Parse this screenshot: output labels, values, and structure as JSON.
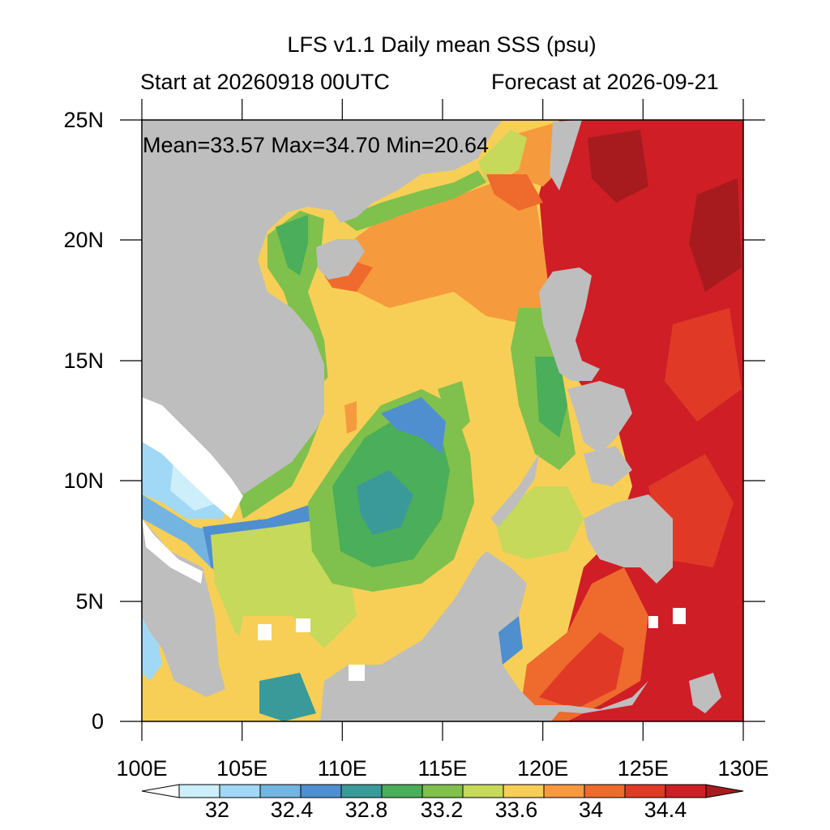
{
  "title": "LFS v1.1 Daily mean SSS (psu)",
  "start_label": "Start at 20260918 00UTC",
  "forecast_label": "Forecast at 2026-09-21",
  "stats": "Mean=33.57  Max=34.70  Min=20.64",
  "y_ticks": [
    "25N",
    "20N",
    "15N",
    "10N",
    "5N",
    "0"
  ],
  "x_ticks": [
    "100E",
    "105E",
    "110E",
    "115E",
    "120E",
    "125E",
    "130E"
  ],
  "colorbar": {
    "labels": [
      "32",
      "32.4",
      "32.8",
      "33.2",
      "33.6",
      "34",
      "34.4"
    ],
    "colors": [
      "#ffffff",
      "#cdeefb",
      "#a1d8f5",
      "#74b4e0",
      "#4f8fcf",
      "#3a9a9a",
      "#4aae5a",
      "#80c04c",
      "#c6d95a",
      "#f8cf56",
      "#f69a3e",
      "#ee6a2d",
      "#e03a26",
      "#cf1e26",
      "#a71b1f"
    ]
  },
  "colors": {
    "land": "#bebebe",
    "border": "#000000"
  }
}
